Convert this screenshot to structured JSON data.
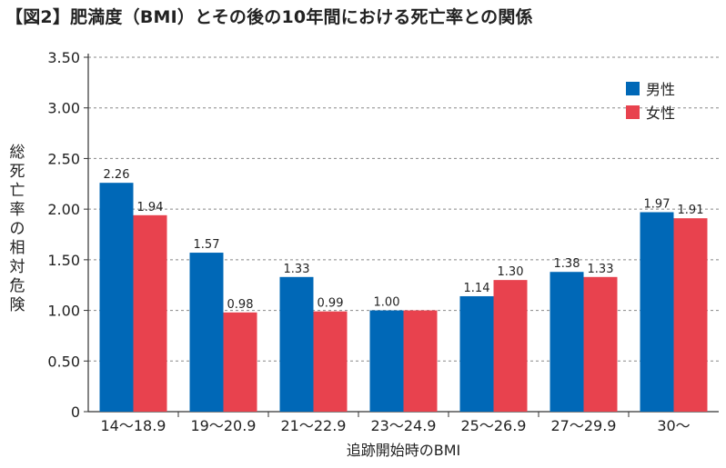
{
  "title": "【図2】肥満度（BMI）とその後の10年間における死亡率との関係",
  "chart_data": {
    "type": "bar",
    "categories": [
      "14～18.9",
      "19～20.9",
      "21～22.9",
      "23～24.9",
      "25～26.9",
      "27～29.9",
      "30～"
    ],
    "series": [
      {
        "name": "男性",
        "values": [
          2.26,
          1.57,
          1.33,
          1.0,
          1.14,
          1.38,
          1.97
        ],
        "labels": [
          "2.26",
          "1.57",
          "1.33",
          "1.00",
          "1.14",
          "1.38",
          "1.97"
        ],
        "color": "#0068b7"
      },
      {
        "name": "女性",
        "values": [
          1.94,
          0.98,
          0.99,
          1.0,
          1.3,
          1.33,
          1.91
        ],
        "labels": [
          "1.94",
          "0.98",
          "0.99",
          "",
          "1.30",
          "1.33",
          "1.91"
        ],
        "color": "#e8424e"
      }
    ],
    "xlabel": "追跡開始時のBMI",
    "ylabel": "総死亡率の相対危険",
    "ylim": [
      0,
      3.5
    ],
    "yticks": [
      "0",
      "0.50",
      "1.00",
      "1.50",
      "2.00",
      "2.50",
      "3.00",
      "3.50"
    ],
    "grid": true,
    "legend_position": "top-right"
  }
}
